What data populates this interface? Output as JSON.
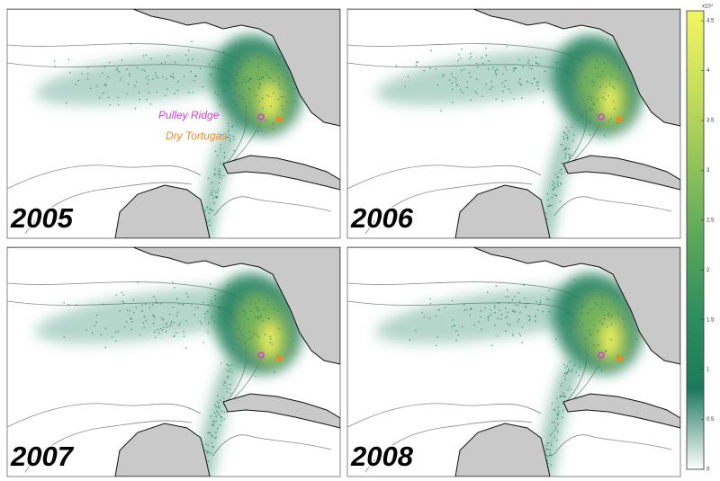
{
  "panels": [
    {
      "year": "2005"
    },
    {
      "year": "2006"
    },
    {
      "year": "2007"
    },
    {
      "year": "2008"
    }
  ],
  "legend": {
    "pulley_ridge": "Pulley Ridge",
    "dry_tortugas": "Dry Tortugas"
  },
  "colorbar": {
    "multiplier": "x10⁴",
    "lim": [
      0,
      4.6
    ],
    "ticks": [
      0,
      0.5,
      1,
      1.5,
      2,
      2.5,
      3,
      3.5,
      4,
      4.5
    ],
    "colors": [
      "#ffffff",
      "#1b7a5c",
      "#2f8f5d",
      "#5aa85a",
      "#93c45a",
      "#c8df5c",
      "#f3f561"
    ]
  }
}
